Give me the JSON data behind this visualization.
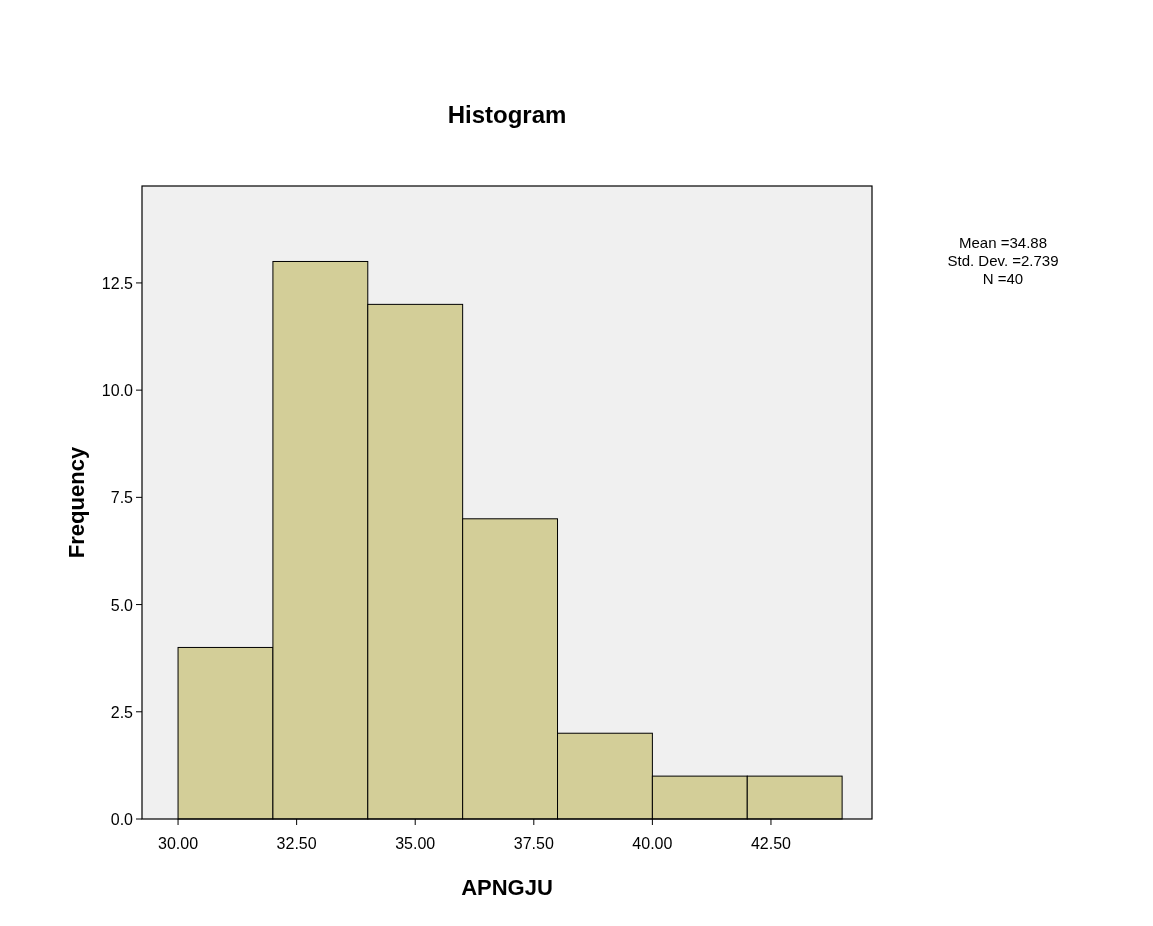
{
  "chart_data": {
    "type": "histogram",
    "title": "Histogram",
    "xlabel": "APNGJU",
    "ylabel": "Frequency",
    "bins": [
      30,
      32,
      34,
      36,
      38,
      40,
      42,
      44
    ],
    "values": [
      4,
      13,
      12,
      7,
      2,
      1,
      1
    ],
    "color": "#d3ce98",
    "xlim": [
      29.24,
      44.63
    ],
    "xticks": [
      {
        "value": 30,
        "label": "30.00"
      },
      {
        "value": 32.5,
        "label": "32.50"
      },
      {
        "value": 35,
        "label": "35.00"
      },
      {
        "value": 37.5,
        "label": "37.50"
      },
      {
        "value": 40,
        "label": "40.00"
      },
      {
        "value": 42.5,
        "label": "42.50"
      }
    ],
    "ylim": [
      0,
      14.76
    ],
    "yticks": [
      {
        "value": 0,
        "label": "0.0"
      },
      {
        "value": 2.5,
        "label": "2.5"
      },
      {
        "value": 5,
        "label": "5.0"
      },
      {
        "value": 7.5,
        "label": "7.5"
      },
      {
        "value": 10,
        "label": "10.0"
      },
      {
        "value": 12.5,
        "label": "12.5"
      }
    ],
    "annotations": [
      "Mean =34.88",
      "Std. Dev. =2.739",
      "N =40"
    ],
    "grid": false
  }
}
